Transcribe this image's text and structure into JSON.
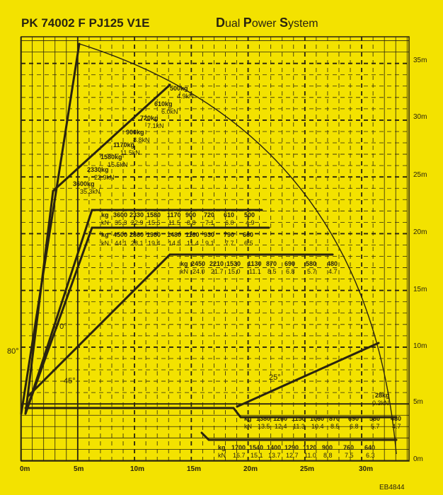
{
  "title": "PK 74002 F PJ125 V1E",
  "system": {
    "d": "D",
    "ual": "ual ",
    "p": "P",
    "ower": "ower ",
    "s": "S",
    "ystem": "ystem"
  },
  "code": "EB4844",
  "colors": {
    "background": "#f3e200",
    "ink": "#2a2410"
  },
  "x_axis": [
    "0m",
    "5m",
    "10m",
    "15m",
    "20m",
    "25m",
    "30m"
  ],
  "y_axis": [
    "5m",
    "10m",
    "15m",
    "20m",
    "25m",
    "30m",
    "35m",
    "0m"
  ],
  "angles": [
    "80°",
    "70°",
    "45°",
    "25°"
  ],
  "diagonal_loads": [
    {
      "kg": "500kg",
      "kn": "4.9kN"
    },
    {
      "kg": "610kg",
      "kn": "6.0kN"
    },
    {
      "kg": "720kg",
      "kn": "7.1kN"
    },
    {
      "kg": "900kg",
      "kn": "8.8kN"
    },
    {
      "kg": "1170kg",
      "kn": "11.5kN"
    },
    {
      "kg": "1580kg",
      "kn": "15.5kN"
    },
    {
      "kg": "2330kg",
      "kn": "22.9kN"
    },
    {
      "kg": "3600kg",
      "kn": "35.3kN"
    }
  ],
  "unit_kg": "kg",
  "unit_kn": "kN",
  "rows": [
    {
      "kg": [
        "3600",
        "2330",
        "1580",
        "1170",
        "900",
        "720",
        "610",
        "500"
      ],
      "kn": [
        "35.3",
        "22.9",
        "15.5",
        "11.5",
        "8.8",
        "7.1",
        "6.0",
        "4.9"
      ]
    },
    {
      "kg": [
        "4500",
        "2860",
        "1980",
        "1480",
        "1160",
        "930",
        "790",
        "660"
      ],
      "kn": [
        "44.1",
        "28.1",
        "19.4",
        "14.5",
        "11.4",
        "9.1",
        "7.7",
        "6.5"
      ]
    },
    {
      "kg": [
        "2450",
        "2210",
        "1530",
        "1130",
        "870",
        "690",
        "580",
        "480"
      ],
      "kn": [
        "24.0",
        "21.7",
        "15.0",
        "11.1",
        "8.5",
        "6.8",
        "5.7",
        "4.7"
      ]
    },
    {
      "kg": [
        "1380",
        "1260",
        "1150",
        "1060",
        "870",
        "690",
        "580",
        "480"
      ],
      "kn": [
        "13.5",
        "12.4",
        "11.3",
        "10.4",
        "8.5",
        "6.8",
        "5.7",
        "4.7"
      ]
    },
    {
      "kg": [
        "1700",
        "1540",
        "1400",
        "1290",
        "1120",
        "900",
        "760",
        "640"
      ],
      "kn": [
        "16.7",
        "15.1",
        "13.7",
        "12.7",
        "11.0",
        "8.8",
        "7.5",
        "6.3"
      ]
    }
  ],
  "tip_load": {
    "kg": "28kg",
    "kn": "0.3kN"
  }
}
